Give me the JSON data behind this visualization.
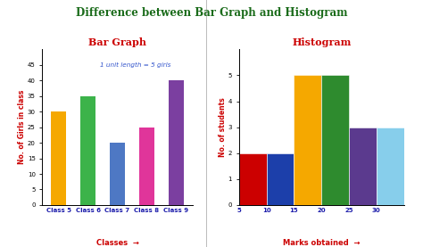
{
  "title": "Difference between Bar Graph and Histogram",
  "title_color": "#1a6b1a",
  "title_fontsize": 8.5,
  "bg_color": "#ffffff",
  "bar_title": "Bar Graph",
  "bar_title_color": "#cc0000",
  "bar_categories": [
    "Class 5",
    "Class 6",
    "Class 7",
    "Class 8",
    "Class 9"
  ],
  "bar_values": [
    30,
    35,
    20,
    25,
    40
  ],
  "bar_colors": [
    "#f5a800",
    "#3cb34a",
    "#4e78c4",
    "#e0359a",
    "#7b3fa0"
  ],
  "bar_xlabel": "Classes",
  "bar_ylabel": "No. of Girls in class",
  "bar_ylim": [
    0,
    50
  ],
  "bar_yticks": [
    0,
    5,
    10,
    15,
    20,
    25,
    30,
    35,
    40,
    45
  ],
  "bar_annotation": "1 unit length = 5 girls",
  "bar_annotation_color": "#3355cc",
  "hist_title": "Histogram",
  "hist_title_color": "#cc0000",
  "hist_bins": [
    5,
    10,
    15,
    20,
    25,
    30
  ],
  "hist_values": [
    2,
    2,
    5,
    5,
    3,
    3
  ],
  "hist_colors": [
    "#cc0000",
    "#1c3faa",
    "#f5a800",
    "#2e8b2e",
    "#5b3a8e",
    "#87ceeb"
  ],
  "hist_xlabel": "Marks obtained",
  "hist_ylabel": "No. of students",
  "hist_ylim": [
    0,
    6
  ],
  "hist_yticks": [
    0,
    1,
    2,
    3,
    4,
    5
  ],
  "hist_xticks": [
    5,
    10,
    15,
    20,
    25,
    30
  ]
}
